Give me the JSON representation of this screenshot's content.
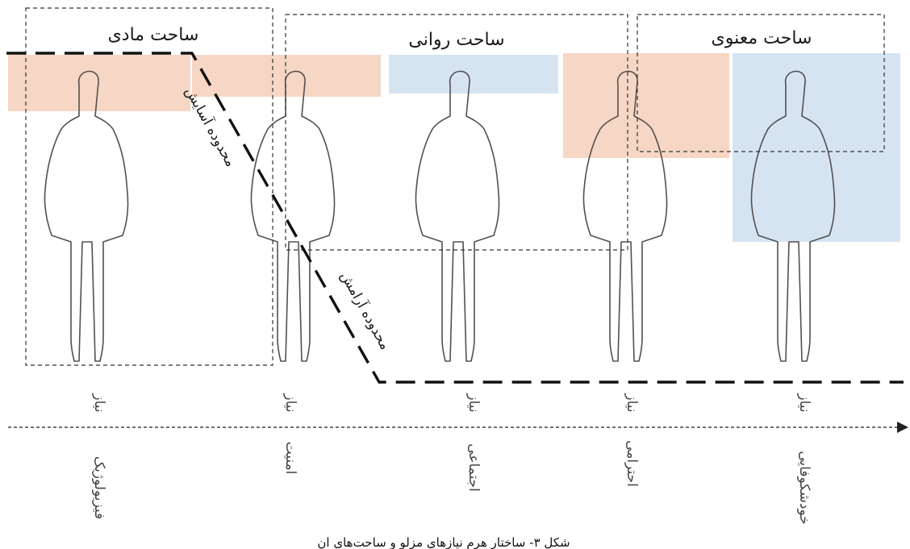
{
  "colors": {
    "peach": "#f6d6c4",
    "blue": "#d6e4f2",
    "figure": "#55504f",
    "boundary": "#111111",
    "region_box": "#333333",
    "axis": "#444444"
  },
  "regions": [
    {
      "id": "material",
      "title": "ساحت مادی"
    },
    {
      "id": "psychological",
      "title": "ساحت روانی"
    },
    {
      "id": "spiritual",
      "title": "ساحت معنوی"
    }
  ],
  "boundaries": {
    "comfort": "محدوده آسایش",
    "tranquility": "محدوده آرامش"
  },
  "needs": [
    {
      "top": "نیاز",
      "bottom": "فیزیولوژیک"
    },
    {
      "top": "نیاز",
      "bottom": "امنیت"
    },
    {
      "top": "نیاز",
      "bottom": "اجتماعی"
    },
    {
      "top": "نیاز",
      "bottom": "احترامی"
    },
    {
      "top": "نیاز",
      "bottom": "خودشکوفایی"
    }
  ],
  "figures": [
    {
      "id": "figure-physiological",
      "highlight": "peach",
      "level": 0.3
    },
    {
      "id": "figure-safety",
      "highlight": "peach",
      "level": 0.2
    },
    {
      "id": "figure-social",
      "highlight": "blue",
      "level": 0.2
    },
    {
      "id": "figure-esteem",
      "highlight": "peach",
      "level": 0.55
    },
    {
      "id": "figure-self-actualization",
      "highlight": "blue",
      "level": 0.95
    }
  ],
  "caption": "شکل ۳- ساختار هرم نیازهای مزلو و ساحت‌های آن"
}
